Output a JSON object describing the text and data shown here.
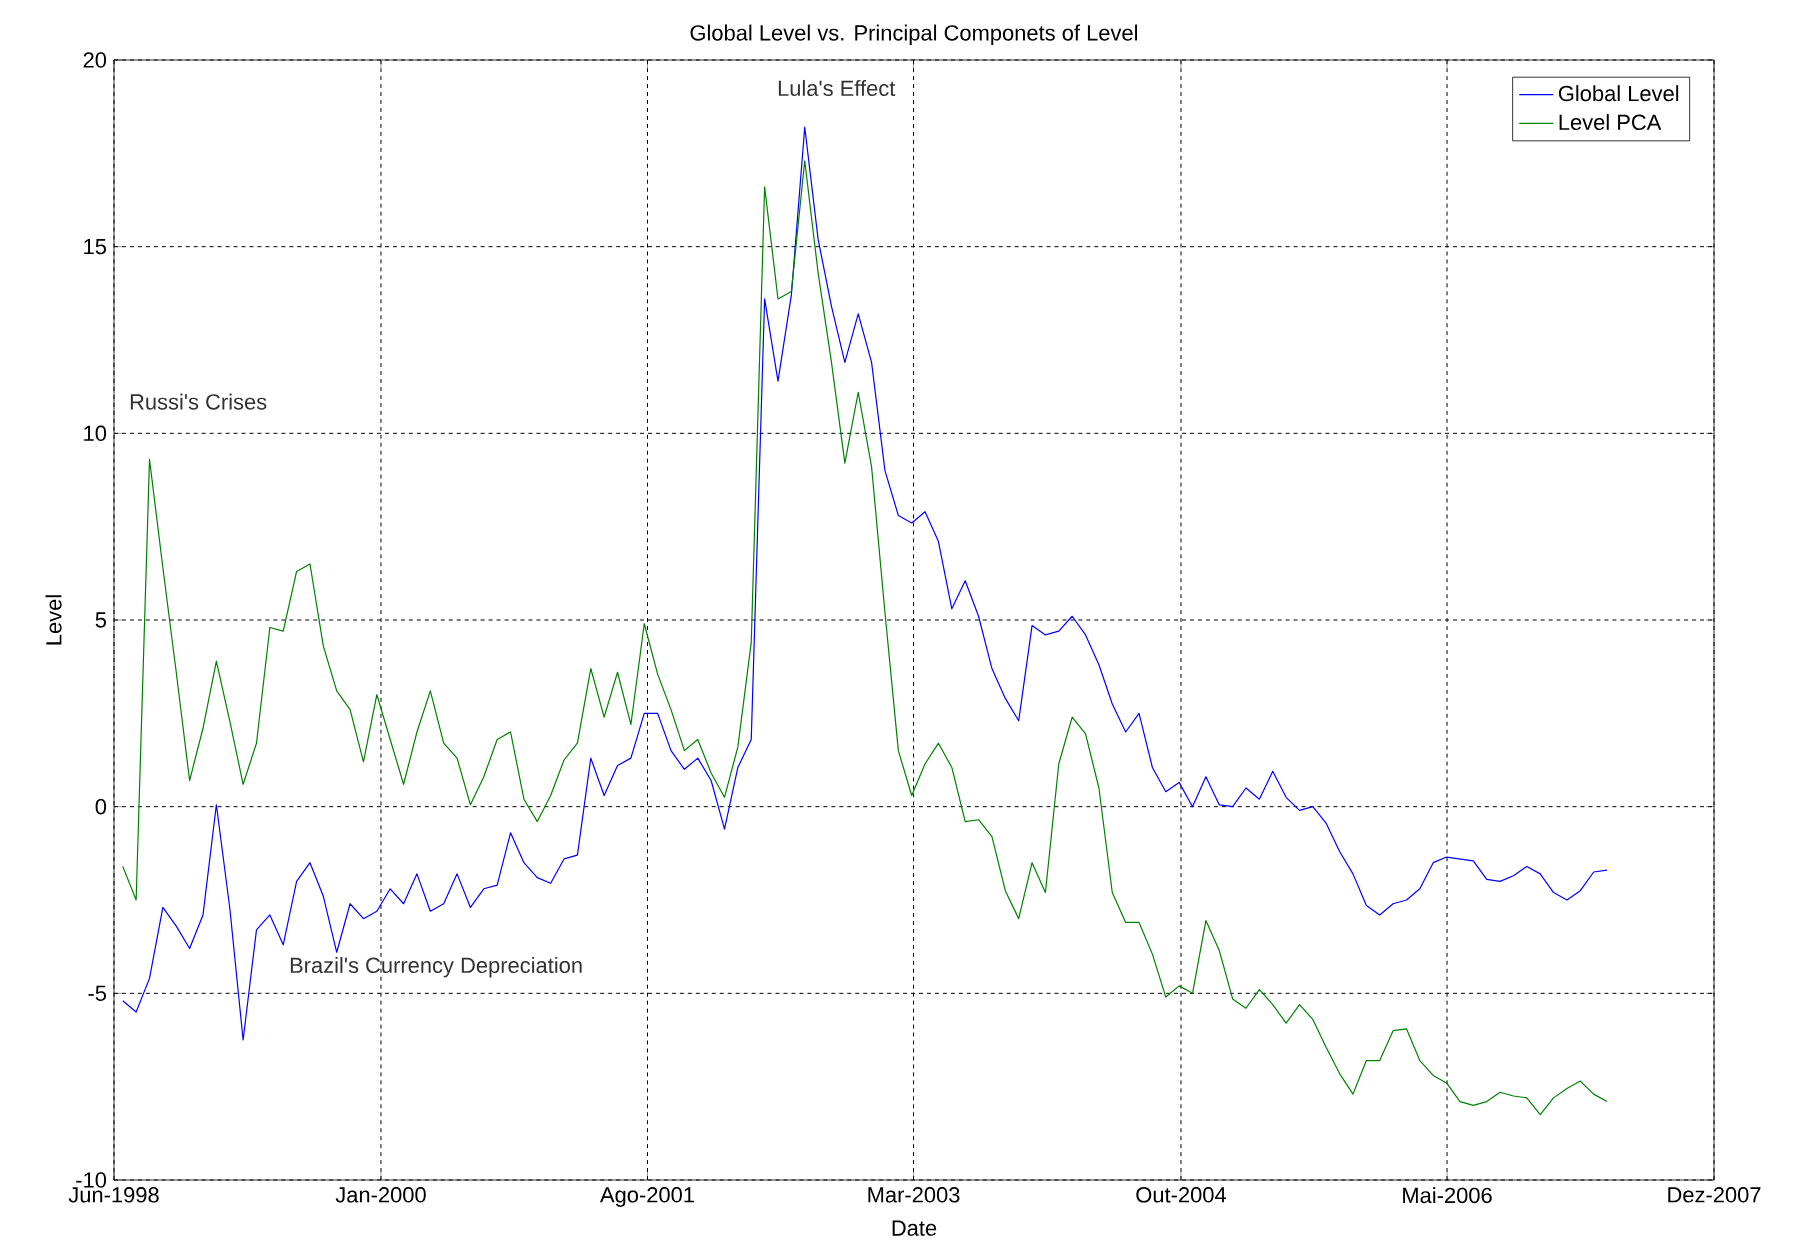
{
  "chart_data": {
    "type": "line",
    "title": "Global Level vs. Principal Componets of Level",
    "xlabel": "Date",
    "ylabel": "Level",
    "x": [
      "1998-06-20",
      "1998-07-19",
      "1998-08-17",
      "1998-09-15",
      "1998-10-14",
      "1998-11-12",
      "1998-12-11",
      "1999-01-09",
      "1999-02-07",
      "1999-03-08",
      "1999-04-06",
      "1999-05-05",
      "1999-06-03",
      "1999-07-02",
      "1999-07-31",
      "1999-08-29",
      "1999-09-27",
      "1999-10-26",
      "1999-11-24",
      "1999-12-23",
      "2000-01-21",
      "2000-02-19",
      "2000-03-19",
      "2000-04-17",
      "2000-05-16",
      "2000-06-14",
      "2000-07-13",
      "2000-08-11",
      "2000-09-09",
      "2000-10-08",
      "2000-11-06",
      "2000-12-05",
      "2001-01-03",
      "2001-02-01",
      "2001-03-02",
      "2001-03-31",
      "2001-04-29",
      "2001-05-28",
      "2001-06-26",
      "2001-07-25",
      "2001-08-23",
      "2001-09-21",
      "2001-10-20",
      "2001-11-18",
      "2001-12-17",
      "2002-01-15",
      "2002-02-13",
      "2002-03-14",
      "2002-04-12",
      "2002-05-11",
      "2002-06-09",
      "2002-07-08",
      "2002-08-06",
      "2002-09-04",
      "2002-10-03",
      "2002-11-01",
      "2002-11-30",
      "2002-12-29",
      "2003-01-27",
      "2003-02-25",
      "2003-03-26",
      "2003-04-24",
      "2003-05-23",
      "2003-06-21",
      "2003-07-20",
      "2003-08-18",
      "2003-09-16",
      "2003-10-15",
      "2003-11-13",
      "2003-12-12",
      "2004-01-10",
      "2004-02-08",
      "2004-03-08",
      "2004-04-06",
      "2004-05-05",
      "2004-06-03",
      "2004-07-02",
      "2004-07-31",
      "2004-08-29",
      "2004-09-27",
      "2004-10-26",
      "2004-11-24",
      "2004-12-23",
      "2005-01-21",
      "2005-02-19",
      "2005-03-20",
      "2005-04-18",
      "2005-05-17",
      "2005-06-15",
      "2005-07-14",
      "2005-08-12",
      "2005-09-10",
      "2005-10-09",
      "2005-11-07",
      "2005-12-06",
      "2006-01-04",
      "2006-02-02",
      "2006-03-03",
      "2006-04-01",
      "2006-04-30",
      "2006-05-29",
      "2006-06-27",
      "2006-07-26",
      "2006-08-24",
      "2006-09-22",
      "2006-10-21",
      "2006-11-19",
      "2006-12-18",
      "2007-01-16",
      "2007-02-14",
      "2007-03-15",
      "2007-04-13"
    ],
    "series": [
      {
        "name": "Global Level",
        "color": "#0000ff",
        "values": [
          -5.2,
          -5.5,
          -4.6,
          -2.7,
          -3.2,
          -3.8,
          -2.9,
          0.05,
          -2.7,
          -6.25,
          -3.3,
          -2.9,
          -3.7,
          -2.0,
          -1.5,
          -2.4,
          -3.9,
          -2.6,
          -3.0,
          -2.8,
          -2.2,
          -2.6,
          -1.8,
          -2.8,
          -2.6,
          -1.8,
          -2.7,
          -2.2,
          -2.1,
          -0.7,
          -1.5,
          -1.9,
          -2.05,
          -1.4,
          -1.3,
          1.3,
          0.3,
          1.1,
          1.3,
          2.5,
          2.5,
          1.5,
          1.0,
          1.3,
          0.7,
          -0.6,
          1.05,
          1.8,
          13.6,
          11.4,
          13.7,
          18.2,
          15.2,
          13.4,
          11.9,
          13.2,
          11.9,
          9.0,
          7.8,
          7.6,
          7.9,
          7.1,
          5.3,
          6.05,
          5.1,
          3.7,
          2.9,
          2.3,
          4.85,
          4.6,
          4.7,
          5.1,
          4.6,
          3.8,
          2.75,
          2.0,
          2.5,
          1.05,
          0.4,
          0.65,
          0.0,
          0.8,
          0.05,
          0.0,
          0.5,
          0.2,
          0.95,
          0.25,
          -0.1,
          0.0,
          -0.45,
          -1.2,
          -1.8,
          -2.65,
          -2.9,
          -2.6,
          -2.5,
          -2.2,
          -1.5,
          -1.35,
          -1.4,
          -1.45,
          -1.95,
          -2.0,
          -1.85,
          -1.6,
          -1.8,
          -2.3,
          -2.5,
          -2.25,
          -1.75,
          -1.7
        ]
      },
      {
        "name": "Level PCA",
        "color": "#008000",
        "values": [
          -1.6,
          -2.5,
          9.3,
          6.4,
          3.6,
          0.7,
          2.1,
          3.9,
          2.3,
          0.6,
          1.7,
          4.8,
          4.7,
          6.3,
          6.5,
          4.3,
          3.1,
          2.6,
          1.2,
          3.0,
          1.8,
          0.6,
          2.0,
          3.1,
          1.7,
          1.3,
          0.05,
          0.8,
          1.8,
          2.0,
          0.2,
          -0.4,
          0.3,
          1.25,
          1.7,
          3.7,
          2.4,
          3.6,
          2.2,
          4.9,
          3.55,
          2.6,
          1.5,
          1.8,
          0.9,
          0.25,
          1.6,
          4.4,
          16.6,
          13.6,
          13.8,
          17.3,
          14.3,
          11.9,
          9.2,
          11.1,
          9.1,
          5.2,
          1.5,
          0.3,
          1.15,
          1.7,
          1.05,
          -0.4,
          -0.35,
          -0.8,
          -2.25,
          -3.0,
          -1.5,
          -2.3,
          1.15,
          2.4,
          1.95,
          0.5,
          -2.3,
          -3.1,
          -3.1,
          -3.95,
          -5.1,
          -4.8,
          -5.0,
          -3.05,
          -3.85,
          -5.15,
          -5.4,
          -4.9,
          -5.3,
          -5.8,
          -5.3,
          -5.7,
          -6.45,
          -7.15,
          -7.7,
          -6.8,
          -6.8,
          -6.0,
          -5.95,
          -6.8,
          -7.2,
          -7.4,
          -7.9,
          -8.0,
          -7.9,
          -7.65,
          -7.75,
          -7.8,
          -8.25,
          -7.8,
          -7.55,
          -7.35,
          -7.7,
          -7.9
        ]
      }
    ],
    "xlim": [
      "1998-06",
      "2007-12"
    ],
    "xticks": [
      {
        "value": "1998-06",
        "label": "Jun-1998"
      },
      {
        "value": "2000-01",
        "label": "Jan-2000"
      },
      {
        "value": "2001-08",
        "label": "Ago-2001"
      },
      {
        "value": "2003-03",
        "label": "Mar-2003"
      },
      {
        "value": "2004-10",
        "label": "Out-2004"
      },
      {
        "value": "2006-05",
        "label": "Mai-2006"
      },
      {
        "value": "2007-12",
        "label": "Dez-2007"
      }
    ],
    "ylim": [
      -10,
      20
    ],
    "yticks": [
      -10,
      -5,
      0,
      5,
      10,
      15,
      20
    ],
    "annotations": [
      "Russi's Crises",
      "Lula's Effect",
      "Brazil's Currency Depreciation"
    ],
    "grid": true,
    "legend": "top right",
    "marker": "none",
    "line_style": "solid"
  }
}
